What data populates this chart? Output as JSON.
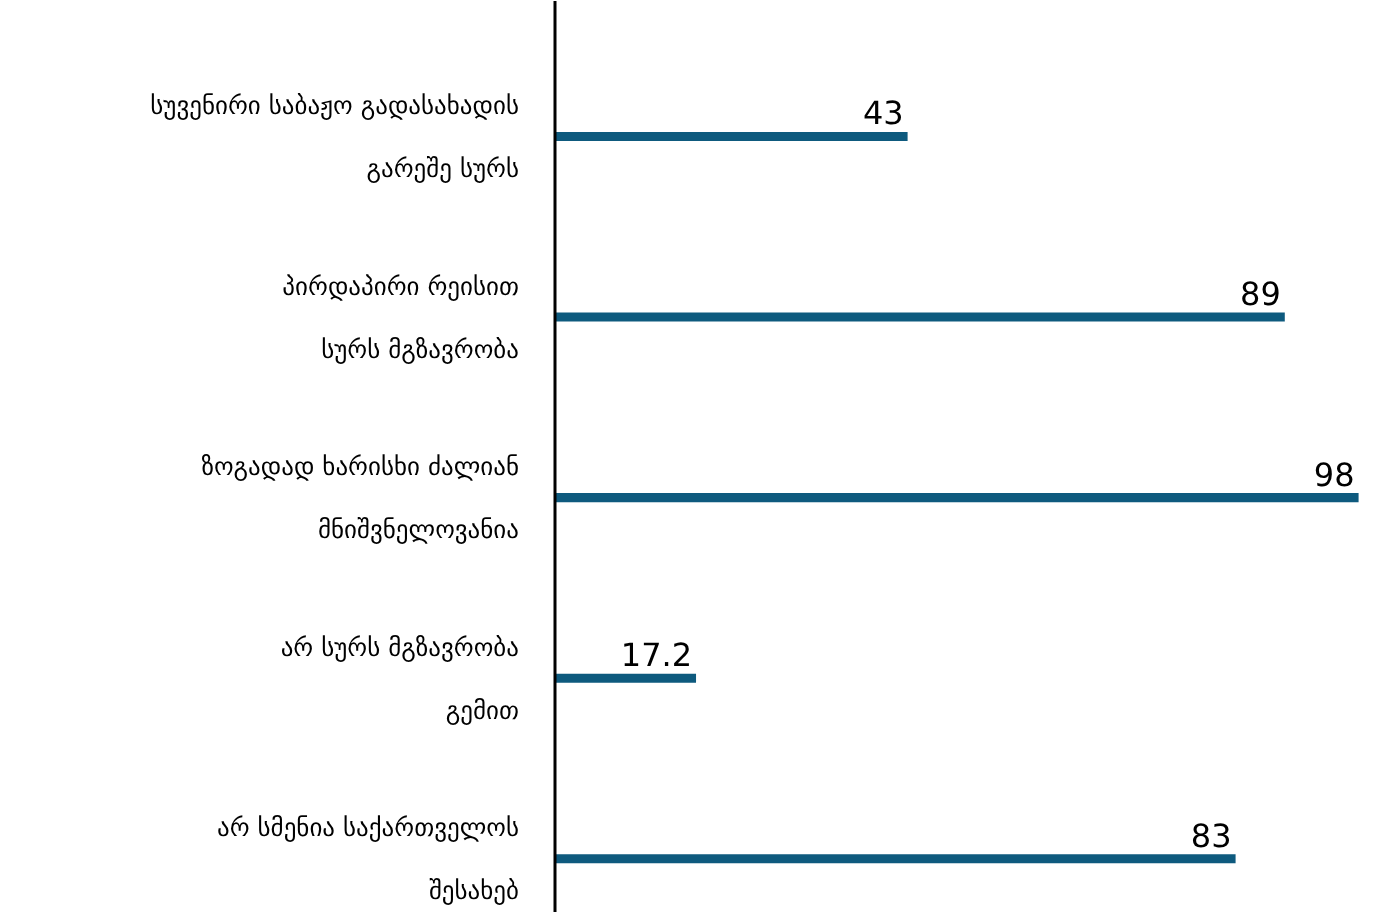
{
  "chart_data": {
    "type": "bar",
    "orientation": "horizontal",
    "categories": [
      "სუვენირი საბაჟო გადასახადის\nგარეშე სურს",
      "პირდაპირი რეისით\nსურს მგზავრობა",
      "ზოგადად ხარისხი ძალიან\nმნიშვნელოვანია",
      "არ სურს მგზავრობა\nგემით",
      "არ სმენია საქართველოს\nშესახებ"
    ],
    "values": [
      43,
      89,
      98,
      17.2,
      83
    ],
    "color": "#0e5a7e",
    "data_labels": true,
    "tick_labels": "y",
    "grid": false
  }
}
